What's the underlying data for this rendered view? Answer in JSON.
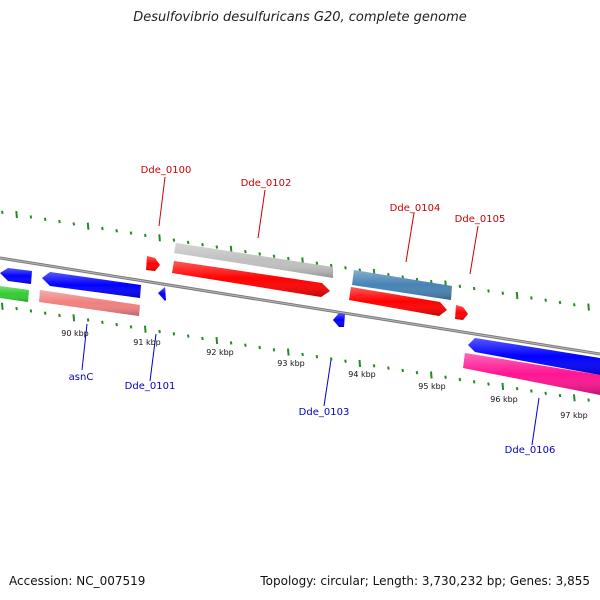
{
  "title": "Desulfovibrio desulfuricans G20, complete genome",
  "footer": {
    "accession": "Accession: NC_007519",
    "topology": "Topology: circular; Length: 3,730,232 bp; Genes: 3,855"
  },
  "scale_labels": [
    "90 kbp",
    "91 kbp",
    "92 kbp",
    "93 kbp",
    "94 kbp",
    "95 kbp",
    "96 kbp",
    "97 kbp"
  ],
  "gene_labels": {
    "Dde_0100": "Dde_0100",
    "Dde_0102": "Dde_0102",
    "Dde_0104": "Dde_0104",
    "Dde_0105": "Dde_0105",
    "asnC": "asnC",
    "Dde_0101": "Dde_0101",
    "Dde_0103": "Dde_0103",
    "Dde_0106": "Dde_0106"
  },
  "colors": {
    "forward_label": "#cc0000",
    "reverse_label": "#0000cc",
    "tick": "#228b22",
    "backbone": "#808080",
    "red_gene": "#ff0000",
    "blue_gene": "#0000ff",
    "grey_gene": "#c0c0c0",
    "steel_gene": "#4682b4",
    "salmon_gene": "#f08080",
    "green_gene": "#32cd32",
    "pink_gene": "#ff1493"
  }
}
